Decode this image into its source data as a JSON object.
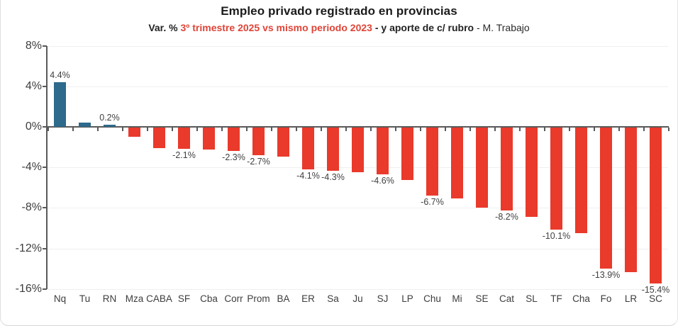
{
  "title": "Empleo privado registrado en provincias",
  "subtitle": {
    "part1": "Var. % ",
    "part2_red": "3º trimestre 2025 vs mismo periodo 2023",
    "part3": " - y aporte de c/ rubro",
    "part4": " - M. Trabajo",
    "red_color": "#de4437"
  },
  "chart_data": {
    "type": "bar",
    "title": "Empleo privado registrado en provincias",
    "subtitle": "Var. % 3º trimestre 2025 vs mismo periodo 2023 - y aporte de c/ rubro - M. Trabajo",
    "xlabel": "",
    "ylabel": "",
    "unit": "%",
    "ylim": [
      -16,
      8
    ],
    "ytick_step": 4,
    "yticks": [
      {
        "value": 8,
        "label": "8%"
      },
      {
        "value": 4,
        "label": "4%"
      },
      {
        "value": 0,
        "label": "0%"
      },
      {
        "value": -4,
        "label": "-4%"
      },
      {
        "value": -8,
        "label": "-8%"
      },
      {
        "value": -12,
        "label": "-12%"
      },
      {
        "value": -16,
        "label": "-16%"
      }
    ],
    "grid": "faint horizontal gridlines every 4%",
    "legend": "none",
    "positive_color": "#2d6a8b",
    "negative_color": "#e93a2b",
    "categories": [
      "Nq",
      "Tu",
      "RN",
      "Mza",
      "CABA",
      "SF",
      "Cba",
      "Corr",
      "Prom",
      "BA",
      "ER",
      "Sa",
      "Ju",
      "SJ",
      "LP",
      "Chu",
      "Mi",
      "SE",
      "Cat",
      "SL",
      "TF",
      "Cha",
      "Fo",
      "LR",
      "SC"
    ],
    "bars": [
      {
        "category": "Nq",
        "value": 4.4,
        "label": "4.4%"
      },
      {
        "category": "Tu",
        "value": 0.4,
        "label": null
      },
      {
        "category": "RN",
        "value": 0.2,
        "label": "0.2%"
      },
      {
        "category": "Mza",
        "value": -0.9,
        "label": null
      },
      {
        "category": "CABA",
        "value": -2.0,
        "label": null
      },
      {
        "category": "SF",
        "value": -2.1,
        "label": "-2.1%"
      },
      {
        "category": "Cba",
        "value": -2.2,
        "label": null
      },
      {
        "category": "Corr",
        "value": -2.3,
        "label": "-2.3%"
      },
      {
        "category": "Prom",
        "value": -2.7,
        "label": "-2.7%"
      },
      {
        "category": "BA",
        "value": -2.9,
        "label": null
      },
      {
        "category": "ER",
        "value": -4.1,
        "label": "-4.1%"
      },
      {
        "category": "Sa",
        "value": -4.3,
        "label": "-4.3%"
      },
      {
        "category": "Ju",
        "value": -4.4,
        "label": null
      },
      {
        "category": "SJ",
        "value": -4.6,
        "label": "-4.6%"
      },
      {
        "category": "LP",
        "value": -5.2,
        "label": null
      },
      {
        "category": "Chu",
        "value": -6.7,
        "label": "-6.7%"
      },
      {
        "category": "Mi",
        "value": -7.0,
        "label": null
      },
      {
        "category": "SE",
        "value": -7.9,
        "label": null
      },
      {
        "category": "Cat",
        "value": -8.2,
        "label": "-8.2%"
      },
      {
        "category": "SL",
        "value": -8.8,
        "label": null
      },
      {
        "category": "TF",
        "value": -10.1,
        "label": "-10.1%"
      },
      {
        "category": "Cha",
        "value": -10.4,
        "label": null
      },
      {
        "category": "Fo",
        "value": -13.9,
        "label": "-13.9%"
      },
      {
        "category": "LR",
        "value": -14.3,
        "label": null
      },
      {
        "category": "SC",
        "value": -15.4,
        "label": "-15.4%"
      }
    ]
  }
}
